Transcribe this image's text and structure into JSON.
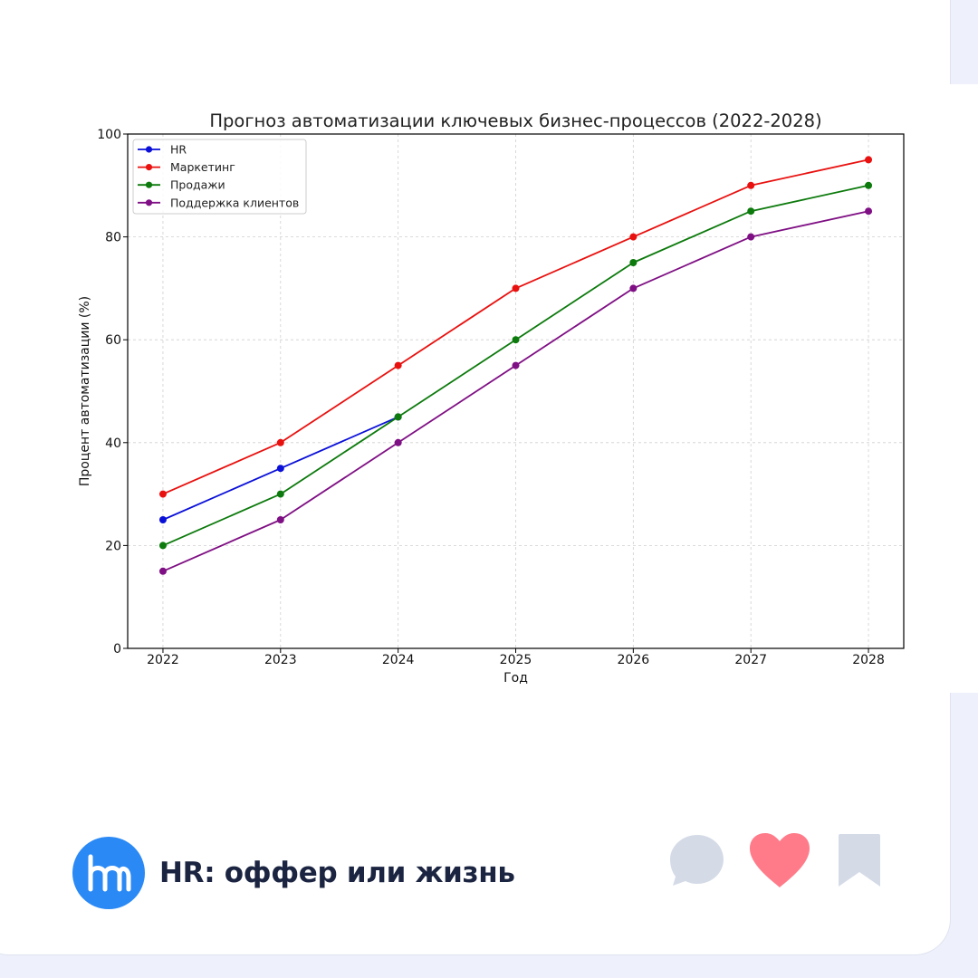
{
  "chart_data": {
    "type": "line",
    "title": "Прогноз автоматизации ключевых бизнес-процессов (2022-2028)",
    "xlabel": "Год",
    "ylabel": "Процент автоматизации (%)",
    "x": [
      2022,
      2023,
      2024,
      2025,
      2026,
      2027,
      2028
    ],
    "xticks": [
      "2022",
      "2023",
      "2024",
      "2025",
      "2026",
      "2027",
      "2028"
    ],
    "yticks": [
      "0",
      "20",
      "40",
      "60",
      "80",
      "100"
    ],
    "ylim": [
      0,
      100
    ],
    "xlim": [
      2021.7,
      2028.3
    ],
    "grid": true,
    "legend_position": "top-left",
    "series": [
      {
        "name": "HR",
        "color": "#0a10d8",
        "x": [
          2022,
          2023,
          2024
        ],
        "values": [
          25,
          35,
          45
        ]
      },
      {
        "name": "Маркетинг",
        "color": "#e8110f",
        "x": [
          2022,
          2023,
          2024,
          2025,
          2026,
          2027,
          2028
        ],
        "values": [
          30,
          40,
          55,
          70,
          80,
          90,
          95
        ]
      },
      {
        "name": "Продажи",
        "color": "#0c7a0c",
        "x": [
          2022,
          2023,
          2024,
          2025,
          2026,
          2027,
          2028
        ],
        "values": [
          20,
          30,
          45,
          60,
          75,
          85,
          90
        ]
      },
      {
        "name": "Поддержка клиентов",
        "color": "#7f0f84",
        "x": [
          2022,
          2023,
          2024,
          2025,
          2026,
          2027,
          2028
        ],
        "values": [
          15,
          25,
          40,
          55,
          70,
          80,
          85
        ]
      }
    ]
  },
  "footer": {
    "channel_name": "HR: оффер или жизнь",
    "logo_icon": "hm-logo-icon",
    "logo_color": "#2a89f5"
  },
  "actions": {
    "comment_icon": "comment-icon",
    "like_icon": "heart-icon",
    "bookmark_icon": "bookmark-icon",
    "comment_color": "#d4dbe7",
    "like_color": "#ff7b8a",
    "bookmark_color": "#d4dbe7"
  }
}
